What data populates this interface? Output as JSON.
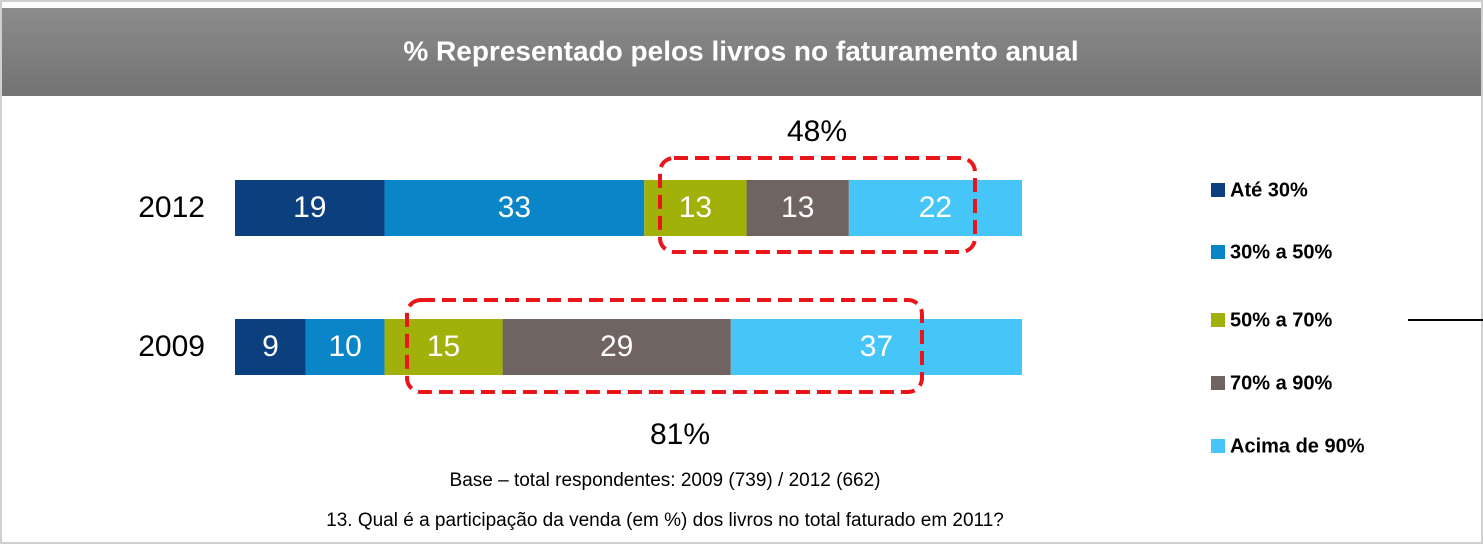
{
  "chart_data": {
    "type": "stacked-bar-horizontal",
    "title": "% Representado pelos livros no faturamento anual",
    "categories": [
      "2012",
      "2009"
    ],
    "series": [
      {
        "name": "Até 30%",
        "color": "#0b3f7e",
        "values": [
          19,
          9
        ]
      },
      {
        "name": "30% a 50%",
        "color": "#0a86c8",
        "values": [
          33,
          10
        ]
      },
      {
        "name": "50% a 70%",
        "color": "#a2b10a",
        "values": [
          13,
          15
        ]
      },
      {
        "name": "70% a 90%",
        "color": "#6f6460",
        "values": [
          13,
          29
        ]
      },
      {
        "name": "Acima de 90%",
        "color": "#45c5f8",
        "values": [
          22,
          37
        ]
      }
    ],
    "xlim": [
      0,
      100
    ],
    "annotations": [
      "48%",
      "81%"
    ],
    "base_note": "Base – total respondentes:  2009 (739) / 2012 (662)",
    "question": "13. Qual é a participação da venda (em %) dos livros no total faturado em 2011?",
    "legend": "right"
  }
}
